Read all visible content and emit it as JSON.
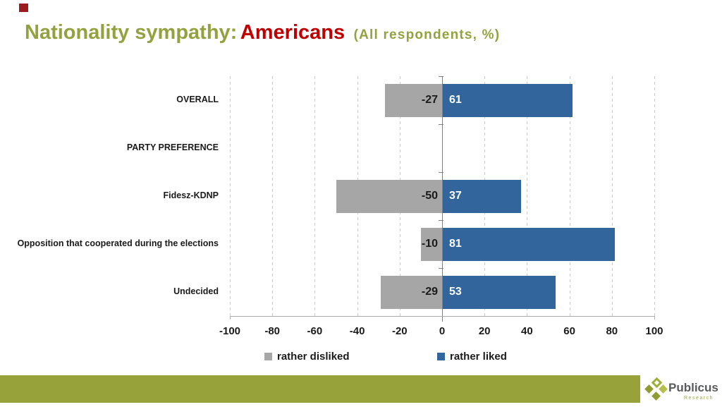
{
  "decor": {
    "corner_square_color": "#9B1B1E"
  },
  "title": {
    "main": "Nationality sympathy:",
    "highlight": "Americans",
    "suffix": "(All respondents, %)",
    "main_color": "#93A23F",
    "highlight_color": "#C00000"
  },
  "chart_data": {
    "type": "bar",
    "orientation": "horizontal-diverging",
    "title": "Nationality sympathy: Americans (All respondents, %)",
    "categories": [
      "OVERALL",
      "PARTY PREFERENCE",
      "Fidesz-KDNP",
      "Opposition that cooperated during the elections",
      "Undecided"
    ],
    "series": [
      {
        "name": "rather disliked",
        "color": "#A6A6A6",
        "values": [
          -27,
          null,
          -50,
          -10,
          -29
        ]
      },
      {
        "name": "rather liked",
        "color": "#32659B",
        "values": [
          61,
          null,
          37,
          81,
          53
        ]
      }
    ],
    "xlim": [
      -100,
      100
    ],
    "x_ticks": [
      -100,
      -80,
      -60,
      -40,
      -20,
      0,
      20,
      40,
      60,
      80,
      100
    ],
    "grid": "vertical-dashed",
    "legend_position": "bottom",
    "xlabel": "",
    "ylabel": ""
  },
  "footer": {
    "band_color": "#97A23B",
    "brand": {
      "name": "Publicus",
      "subtitle": "Research",
      "name_color": "#595A5C",
      "logo_colors": [
        "#9FAE39",
        "#8E9C31",
        "#B3BF49"
      ]
    }
  }
}
